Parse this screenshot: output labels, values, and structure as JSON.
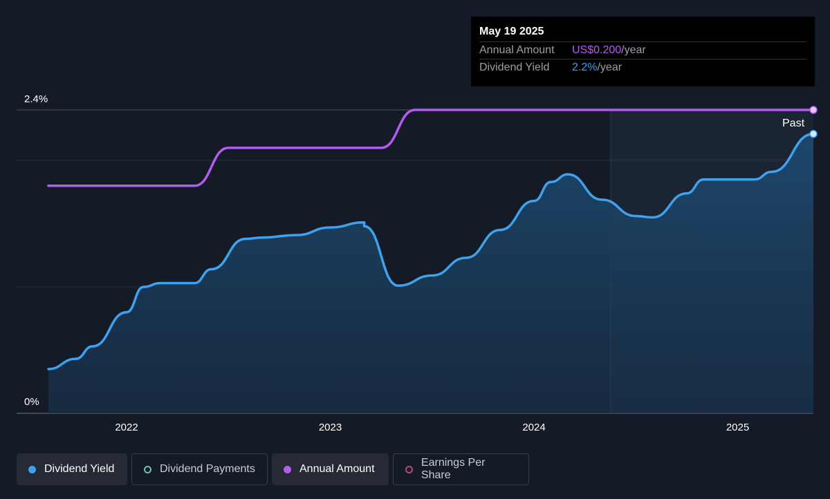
{
  "tooltip": {
    "date": "May 19 2025",
    "rows": [
      {
        "label": "Annual Amount",
        "value": "US$0.200",
        "unit": "/year"
      },
      {
        "label": "Dividend Yield",
        "value": "2.2%",
        "unit": "/year"
      }
    ]
  },
  "legend": [
    {
      "label": "Dividend Yield",
      "color": "#3ea2ee",
      "style": "solid",
      "active": true
    },
    {
      "label": "Dividend Payments",
      "color": "#5fc9b8",
      "style": "ring",
      "active": false
    },
    {
      "label": "Annual Amount",
      "color": "#b25cf0",
      "style": "solid",
      "active": true
    },
    {
      "label": "Earnings Per Share",
      "color": "#c0447e",
      "style": "ring",
      "active": false
    }
  ],
  "past_label": "Past",
  "chart_data": {
    "type": "line",
    "x_ticks": [
      "2022",
      "2023",
      "2024",
      "2025"
    ],
    "y_ticks": [
      "0%",
      "2.4%"
    ],
    "ylim": [
      0,
      2.4
    ],
    "grid": true,
    "series": [
      {
        "name": "Dividend Yield",
        "color": "#3ea2ee",
        "fill": true,
        "unit": "%",
        "points": [
          [
            "2021-08",
            0.35
          ],
          [
            "2021-10",
            0.43
          ],
          [
            "2021-11",
            0.53
          ],
          [
            "2022-01",
            0.8
          ],
          [
            "2022-02",
            1.0
          ],
          [
            "2022-03",
            1.03
          ],
          [
            "2022-05",
            1.03
          ],
          [
            "2022-06",
            1.14
          ],
          [
            "2022-08",
            1.38
          ],
          [
            "2022-09",
            1.39
          ],
          [
            "2022-11",
            1.41
          ],
          [
            "2023-01",
            1.47
          ],
          [
            "2023-03",
            1.51
          ],
          [
            "2023-03",
            1.48
          ],
          [
            "2023-05",
            1.01
          ],
          [
            "2023-07",
            1.09
          ],
          [
            "2023-09",
            1.23
          ],
          [
            "2023-11",
            1.45
          ],
          [
            "2024-01",
            1.68
          ],
          [
            "2024-02",
            1.83
          ],
          [
            "2024-03",
            1.89
          ],
          [
            "2024-05",
            1.69
          ],
          [
            "2024-07",
            1.56
          ],
          [
            "2024-08",
            1.55
          ],
          [
            "2024-10",
            1.74
          ],
          [
            "2024-11",
            1.85
          ],
          [
            "2025-02",
            1.85
          ],
          [
            "2025-03",
            1.91
          ],
          [
            "2025-05",
            2.21
          ]
        ]
      },
      {
        "name": "Annual Amount",
        "color": "#b25cf0",
        "fill": false,
        "unit": "US$/year",
        "points": [
          [
            "2021-08",
            0.15
          ],
          [
            "2022-05",
            0.15
          ],
          [
            "2022-07",
            0.175
          ],
          [
            "2023-04",
            0.175
          ],
          [
            "2023-06",
            0.2
          ],
          [
            "2025-05",
            0.2
          ]
        ]
      }
    ]
  }
}
